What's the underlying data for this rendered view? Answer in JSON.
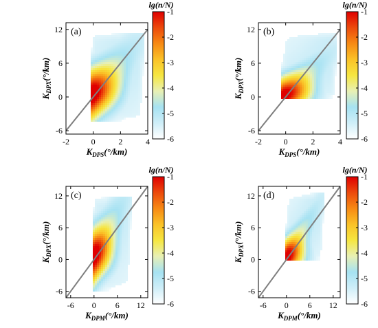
{
  "colorbar_stops": [
    "#ffffff",
    "#cfeef8",
    "#a6e2f2",
    "#e8f0b4",
    "#f6e640",
    "#fac228",
    "#f78a14",
    "#ec4a0c",
    "#e00000"
  ],
  "chart_data": [
    {
      "type": "heatmap",
      "panel_label": "(a)",
      "xlabel_main": "K",
      "xlabel_sub": "DPS",
      "xlabel_unit": "(°/km)",
      "ylabel_main": "K",
      "ylabel_sub": "DPX",
      "ylabel_unit": "(°/km)",
      "xlim": [
        -2,
        4
      ],
      "ylim": [
        -6.6,
        13.2
      ],
      "xticks": [
        -2,
        0,
        2,
        4
      ],
      "xtick_labels": [
        "-2",
        "0",
        "2",
        "4"
      ],
      "yticks": [
        -6,
        0,
        6,
        12
      ],
      "ytick_labels": [
        "-6",
        "0",
        "6",
        "12"
      ],
      "reference_line": {
        "x": [
          -2,
          4
        ],
        "y": [
          -6,
          12
        ]
      },
      "colorbar": {
        "title": "lg(n/N)",
        "range": [
          -6,
          -1
        ],
        "ticks": [
          -1,
          -2,
          -3,
          -4,
          -5,
          -6
        ],
        "tick_labels": [
          "-1",
          "-2",
          "-3",
          "-4",
          "-5",
          "-6"
        ]
      },
      "density_x_extent": [
        -0.2,
        3.7
      ],
      "density_y_extent": [
        -4.5,
        11.5
      ],
      "density_core": {
        "x": 0.2,
        "y": 0.8
      },
      "density_trend": {
        "slope": 2.6,
        "intercept": 0.4
      }
    },
    {
      "type": "heatmap",
      "panel_label": "(b)",
      "xlabel_main": "K",
      "xlabel_sub": "DPS",
      "xlabel_unit": "(°/km)",
      "ylabel_main": "K",
      "ylabel_sub": "DPX",
      "ylabel_unit": "(°/km)",
      "xlim": [
        -2,
        4
      ],
      "ylim": [
        -6.6,
        13.2
      ],
      "xticks": [
        -2,
        0,
        2,
        4
      ],
      "xtick_labels": [
        "-2",
        "0",
        "2",
        "4"
      ],
      "yticks": [
        -6,
        0,
        6,
        12
      ],
      "ytick_labels": [
        "-6",
        "0",
        "6",
        "12"
      ],
      "reference_line": {
        "x": [
          -2,
          4
        ],
        "y": [
          -6,
          12
        ]
      },
      "colorbar": {
        "title": "lg(n/N)",
        "range": [
          -6,
          -1
        ],
        "ticks": [
          -1,
          -2,
          -3,
          -4,
          -5,
          -6
        ],
        "tick_labels": [
          "-1",
          "-2",
          "-3",
          "-4",
          "-5",
          "-6"
        ]
      },
      "density_x_extent": [
        -0.3,
        3.7
      ],
      "density_y_extent": [
        -0.3,
        11.5
      ],
      "density_core": {
        "x": 0.4,
        "y": 0.5
      },
      "density_trend": {
        "slope": 2.2,
        "intercept": 0.2
      }
    },
    {
      "type": "heatmap",
      "panel_label": "(c)",
      "xlabel_main": "K",
      "xlabel_sub": "DPM",
      "xlabel_unit": "(°/km)",
      "ylabel_main": "K",
      "ylabel_sub": "DPX",
      "ylabel_unit": "(°/km)",
      "xlim": [
        -7.2,
        13.8
      ],
      "ylim": [
        -7.2,
        13.8
      ],
      "xticks": [
        -6,
        0,
        6,
        12
      ],
      "xtick_labels": [
        "-6",
        "0",
        "6",
        "12"
      ],
      "yticks": [
        -6,
        0,
        6,
        12
      ],
      "ytick_labels": [
        "-6",
        "0",
        "6",
        "12"
      ],
      "reference_line": {
        "x": [
          -7.2,
          13.8
        ],
        "y": [
          -7.2,
          13.8
        ]
      },
      "colorbar": {
        "title": "lg(n/N)",
        "range": [
          -6,
          -1
        ],
        "ticks": [
          -1,
          -2,
          -3,
          -4,
          -5,
          -6
        ],
        "tick_labels": [
          "-1",
          "-2",
          "-3",
          "-4",
          "-5",
          "-6"
        ]
      },
      "density_x_extent": [
        -0.3,
        9.5
      ],
      "density_y_extent": [
        -6,
        12
      ],
      "density_core": {
        "x": 1.0,
        "y": 1.2
      },
      "density_trend": {
        "slope": 1.3,
        "intercept": 0.2
      }
    },
    {
      "type": "heatmap",
      "panel_label": "(d)",
      "xlabel_main": "K",
      "xlabel_sub": "DPM",
      "xlabel_unit": "(°/km)",
      "ylabel_main": "K",
      "ylabel_sub": "DPX",
      "ylabel_unit": "(°/km)",
      "xlim": [
        -7.2,
        13.8
      ],
      "ylim": [
        -7.2,
        13.8
      ],
      "xticks": [
        -6,
        0,
        6,
        12
      ],
      "xtick_labels": [
        "-6",
        "0",
        "6",
        "12"
      ],
      "yticks": [
        -6,
        0,
        6,
        12
      ],
      "ytick_labels": [
        "-6",
        "0",
        "6",
        "12"
      ],
      "reference_line": {
        "x": [
          -7.2,
          13.8
        ],
        "y": [
          -7.2,
          13.8
        ]
      },
      "colorbar": {
        "title": "lg(n/N)",
        "range": [
          -6,
          -1
        ],
        "ticks": [
          -1,
          -2,
          -3,
          -4,
          -5,
          -6
        ],
        "tick_labels": [
          "-1",
          "-2",
          "-3",
          "-4",
          "-5",
          "-6"
        ]
      },
      "density_x_extent": [
        -0.2,
        9.5
      ],
      "density_y_extent": [
        -0.2,
        12.5
      ],
      "density_core": {
        "x": 1.2,
        "y": 0.6
      },
      "density_trend": {
        "slope": 1.2,
        "intercept": 0.0
      }
    }
  ]
}
